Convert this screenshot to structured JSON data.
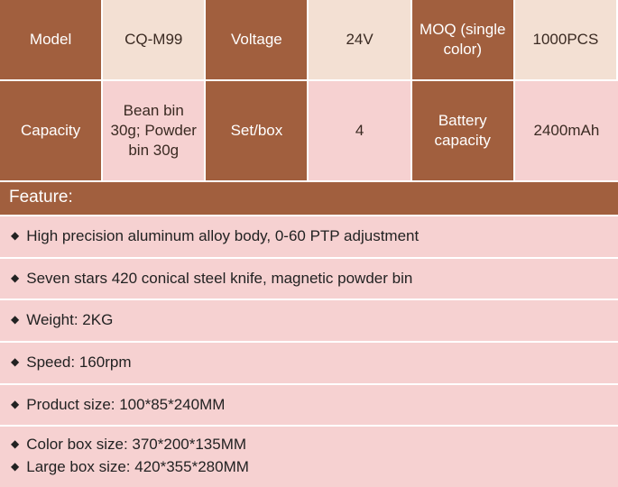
{
  "colors": {
    "brown": "#a15f3e",
    "cream": "#f3e0d3",
    "pink": "#f6d1d1",
    "text_light": "#ffffff",
    "text_dark": "#3a2a22",
    "divider": "#ffffff"
  },
  "spec_table": {
    "type": "table",
    "columns": 6,
    "rows": [
      [
        {
          "text": "Model",
          "style": "brown"
        },
        {
          "text": "CQ-M99",
          "style": "cream"
        },
        {
          "text": "Voltage",
          "style": "brown"
        },
        {
          "text": "24V",
          "style": "cream"
        },
        {
          "text": "MOQ (single color)",
          "style": "brown"
        },
        {
          "text": "1000PCS",
          "style": "cream"
        }
      ],
      [
        {
          "text": "Capacity",
          "style": "brown"
        },
        {
          "text": "Bean bin 30g; Powder bin 30g",
          "style": "pink"
        },
        {
          "text": "Set/box",
          "style": "brown"
        },
        {
          "text": "4",
          "style": "pink"
        },
        {
          "text": "Battery capacity",
          "style": "brown"
        },
        {
          "text": "2400mAh",
          "style": "pink"
        }
      ]
    ]
  },
  "feature": {
    "header": "Feature:",
    "items": [
      [
        "High precision aluminum  alloy body, 0-60 PTP adjustment"
      ],
      [
        "Seven stars 420 conical steel knife, magnetic  powder bin"
      ],
      [
        "Weight: 2KG"
      ],
      [
        "Speed: 160rpm"
      ],
      [
        "Product size:  100*85*240MM"
      ],
      [
        "Color box size: 370*200*135MM",
        "Large box size: 420*355*280MM"
      ]
    ]
  }
}
